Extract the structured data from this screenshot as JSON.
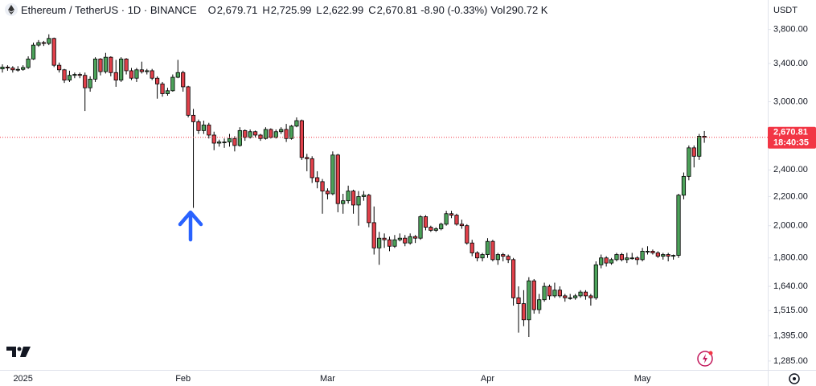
{
  "chart_data": {
    "type": "candlestick",
    "legend_bar": {
      "symbol": "Ethereum / TetherUS · 1D · BINANCE",
      "items": [
        {
          "label": "O",
          "value": "2,679.71"
        },
        {
          "label": "H",
          "value": "2,725.99"
        },
        {
          "label": "L",
          "value": "2,622.99"
        },
        {
          "label": "C",
          "value": "2,670.81"
        }
      ],
      "change": "-8.90 (-0.33%)",
      "volume_label": "Vol",
      "volume": "290.72 K"
    },
    "currency": "USDT",
    "categories": [
      null,
      null,
      null,
      null,
      "2025",
      null,
      null,
      null,
      null,
      null,
      null,
      null,
      null,
      null,
      null,
      null,
      null,
      null,
      null,
      null,
      null,
      null,
      null,
      null,
      null,
      null,
      null,
      null,
      null,
      null,
      null,
      null,
      null,
      null,
      null,
      "Feb",
      null,
      null,
      null,
      null,
      null,
      null,
      null,
      null,
      null,
      null,
      null,
      null,
      null,
      null,
      null,
      null,
      null,
      null,
      null,
      null,
      null,
      null,
      null,
      null,
      null,
      null,
      null,
      "Mar",
      null,
      null,
      null,
      null,
      null,
      null,
      null,
      null,
      null,
      null,
      null,
      null,
      null,
      null,
      null,
      null,
      null,
      null,
      null,
      null,
      null,
      null,
      null,
      null,
      null,
      null,
      null,
      null,
      null,
      null,
      "Apr",
      null,
      null,
      null,
      null,
      null,
      null,
      null,
      null,
      null,
      null,
      null,
      null,
      null,
      null,
      null,
      null,
      null,
      null,
      null,
      null,
      null,
      null,
      null,
      null,
      null,
      null,
      null,
      null,
      null,
      "May",
      null,
      null,
      null,
      null,
      null,
      null,
      null,
      null,
      null,
      null,
      null,
      null
    ],
    "open": [
      3340,
      3360,
      3350,
      3330,
      3335,
      3355,
      3450,
      3610,
      3640,
      3630,
      3690,
      3380,
      3330,
      3220,
      3270,
      3280,
      3270,
      3140,
      3230,
      3450,
      3310,
      3470,
      3300,
      3220,
      3450,
      3320,
      3240,
      3330,
      3310,
      3320,
      3240,
      3180,
      3080,
      3110,
      3250,
      3300,
      3150,
      2870,
      2810,
      2730,
      2780,
      2690,
      2620,
      2630,
      2630,
      2660,
      2600,
      2730,
      2670,
      2720,
      2690,
      2660,
      2740,
      2670,
      2720,
      2740,
      2660,
      2770,
      2820,
      2500,
      2490,
      2340,
      2310,
      2240,
      2220,
      2520,
      2150,
      2170,
      2240,
      2140,
      2200,
      2210,
      2020,
      1860,
      1920,
      1910,
      1870,
      1910,
      1920,
      1890,
      1930,
      1920,
      2060,
      1990,
      1970,
      1980,
      2010,
      2080,
      2070,
      2010,
      2000,
      1890,
      1830,
      1800,
      1820,
      1900,
      1790,
      1820,
      1810,
      1790,
      1580,
      1550,
      1470,
      1670,
      1520,
      1570,
      1640,
      1590,
      1620,
      1590,
      1580,
      1580,
      1590,
      1610,
      1590,
      1580,
      1760,
      1800,
      1770,
      1790,
      1820,
      1790,
      1800,
      1800,
      1790,
      1840,
      1840,
      1830,
      1810,
      1820,
      1810,
      1815,
      2210,
      2350,
      2580,
      2510,
      2679.71
    ],
    "high": [
      3390,
      3380,
      3370,
      3370,
      3380,
      3480,
      3640,
      3670,
      3660,
      3740,
      3700,
      3410,
      3340,
      3320,
      3300,
      3300,
      3300,
      3260,
      3470,
      3460,
      3520,
      3480,
      3440,
      3470,
      3460,
      3350,
      3350,
      3420,
      3340,
      3340,
      3260,
      3200,
      3140,
      3280,
      3440,
      3320,
      3160,
      2930,
      2830,
      2820,
      2800,
      2720,
      2650,
      2660,
      2700,
      2680,
      2760,
      2740,
      2740,
      2730,
      2700,
      2760,
      2750,
      2740,
      2760,
      2790,
      2780,
      2850,
      2830,
      2530,
      2510,
      2390,
      2330,
      2260,
      2550,
      2530,
      2220,
      2280,
      2250,
      2240,
      2240,
      2220,
      2130,
      1960,
      1950,
      1930,
      1940,
      1950,
      1940,
      1950,
      1940,
      2070,
      2070,
      2000,
      1990,
      2020,
      2100,
      2100,
      2080,
      2040,
      2010,
      1910,
      1840,
      1830,
      1920,
      1910,
      1830,
      1830,
      1820,
      1800,
      1640,
      1620,
      1690,
      1680,
      1600,
      1660,
      1650,
      1660,
      1640,
      1600,
      1600,
      1600,
      1620,
      1620,
      1600,
      1780,
      1820,
      1810,
      1800,
      1830,
      1830,
      1830,
      1830,
      1810,
      1860,
      1870,
      1850,
      1840,
      1830,
      1830,
      1820,
      2220,
      2380,
      2600,
      2600,
      2700,
      2725.99
    ],
    "low": [
      3300,
      3320,
      3300,
      3310,
      3320,
      3340,
      3440,
      3590,
      3600,
      3610,
      3360,
      3300,
      3190,
      3200,
      3240,
      3240,
      2910,
      3100,
      3200,
      3270,
      3290,
      3260,
      3150,
      3200,
      3280,
      3220,
      3200,
      3290,
      3280,
      3220,
      3030,
      3050,
      3060,
      3100,
      3240,
      3100,
      2850,
      2120,
      2700,
      2700,
      2660,
      2560,
      2590,
      2580,
      2590,
      2550,
      2590,
      2640,
      2660,
      2670,
      2640,
      2650,
      2660,
      2660,
      2700,
      2630,
      2650,
      2760,
      2480,
      2390,
      2300,
      2260,
      2080,
      2180,
      2210,
      2090,
      2080,
      2150,
      2080,
      2000,
      2170,
      1990,
      1820,
      1760,
      1860,
      1840,
      1860,
      1900,
      1870,
      1880,
      1890,
      1910,
      1970,
      1960,
      1960,
      1970,
      2000,
      2050,
      2000,
      1980,
      1880,
      1810,
      1780,
      1780,
      1800,
      1780,
      1760,
      1780,
      1770,
      1540,
      1410,
      1440,
      1390,
      1500,
      1500,
      1560,
      1570,
      1580,
      1580,
      1560,
      1570,
      1570,
      1580,
      1570,
      1540,
      1570,
      1740,
      1750,
      1760,
      1780,
      1780,
      1770,
      1790,
      1760,
      1780,
      1820,
      1820,
      1800,
      1790,
      1780,
      1790,
      1800,
      2180,
      2320,
      2420,
      2480,
      2622.99
    ],
    "close": [
      3360,
      3350,
      3330,
      3335,
      3355,
      3450,
      3610,
      3640,
      3630,
      3690,
      3380,
      3330,
      3220,
      3270,
      3280,
      3270,
      3140,
      3230,
      3450,
      3310,
      3470,
      3300,
      3220,
      3450,
      3320,
      3240,
      3330,
      3310,
      3320,
      3240,
      3180,
      3080,
      3110,
      3250,
      3300,
      3150,
      2870,
      2810,
      2730,
      2780,
      2690,
      2620,
      2630,
      2630,
      2660,
      2600,
      2730,
      2670,
      2720,
      2690,
      2660,
      2740,
      2670,
      2720,
      2740,
      2660,
      2770,
      2820,
      2500,
      2490,
      2340,
      2310,
      2240,
      2220,
      2520,
      2150,
      2170,
      2240,
      2140,
      2200,
      2210,
      2020,
      1860,
      1920,
      1910,
      1870,
      1910,
      1920,
      1890,
      1930,
      1920,
      2060,
      1990,
      1970,
      1980,
      2010,
      2080,
      2070,
      2010,
      2000,
      1890,
      1830,
      1800,
      1820,
      1900,
      1790,
      1820,
      1810,
      1790,
      1580,
      1550,
      1470,
      1670,
      1520,
      1570,
      1640,
      1590,
      1620,
      1590,
      1580,
      1580,
      1590,
      1610,
      1590,
      1580,
      1760,
      1800,
      1770,
      1790,
      1820,
      1790,
      1800,
      1800,
      1790,
      1840,
      1840,
      1830,
      1810,
      1820,
      1810,
      1815,
      2210,
      2350,
      2580,
      2510,
      2679.71,
      2670.81
    ],
    "up_color": "#4ca25a",
    "down_color": "#e0404a",
    "wick_color": "#000000",
    "ylim": [
      1248,
      4184
    ],
    "log_scale": true,
    "grid": false,
    "yticks": [
      {
        "value": 3800,
        "label": "3,800.00"
      },
      {
        "value": 3400,
        "label": "3,400.00"
      },
      {
        "value": 3000,
        "label": "3,000.00"
      },
      {
        "value": 2400,
        "label": "2,400.00"
      },
      {
        "value": 2200,
        "label": "2,200.00"
      },
      {
        "value": 2000,
        "label": "2,000.00"
      },
      {
        "value": 1800,
        "label": "1,800.00"
      },
      {
        "value": 1640,
        "label": "1,640.00"
      },
      {
        "value": 1515,
        "label": "1,515.00"
      },
      {
        "value": 1395,
        "label": "1,395.00"
      },
      {
        "value": 1285,
        "label": "1,285.00"
      }
    ],
    "price_line": {
      "value": 2670.81,
      "label": "2,670.81",
      "countdown": "18:40:35",
      "color": "#f23645"
    }
  }
}
